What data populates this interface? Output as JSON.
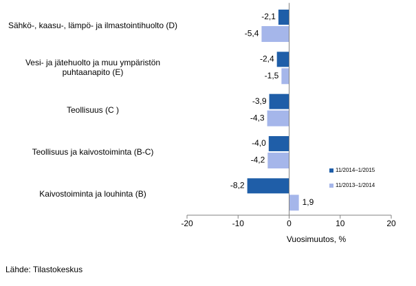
{
  "chart_data": {
    "type": "hbar",
    "categories": [
      "Sähkö-, kaasu-, lämpö- ja ilmastointihuolto (D)",
      "Vesi- ja jätehuolto ja muu ympäristön puhtaanapito (E)",
      "Teollisuus (C )",
      "Teollisuus ja kaivostoiminta (B-C)",
      "Kaivostoiminta ja louhinta (B)"
    ],
    "series": [
      {
        "name": "11/2014–1/2015",
        "color": "#1f5ea8",
        "values": [
          -2.1,
          -2.4,
          -3.9,
          -4.0,
          -8.2
        ],
        "value_labels": [
          "-2,1",
          "-2,4",
          "-3,9",
          "-4,0",
          "-8,2"
        ]
      },
      {
        "name": "11/2013–1/2014",
        "color": "#a5b6ea",
        "values": [
          -5.4,
          -1.5,
          -4.3,
          -4.2,
          1.9
        ],
        "value_labels": [
          "-5,4",
          "-1,5",
          "-4,3",
          "-4,2",
          "1,9"
        ]
      }
    ],
    "xlabel": "Vuosimuutos, %",
    "xlim": [
      -20,
      20
    ],
    "xticks": [
      -20,
      -10,
      0,
      10,
      20
    ],
    "legend": "right",
    "grid": false
  },
  "source": "Lähde: Tilastokeskus"
}
